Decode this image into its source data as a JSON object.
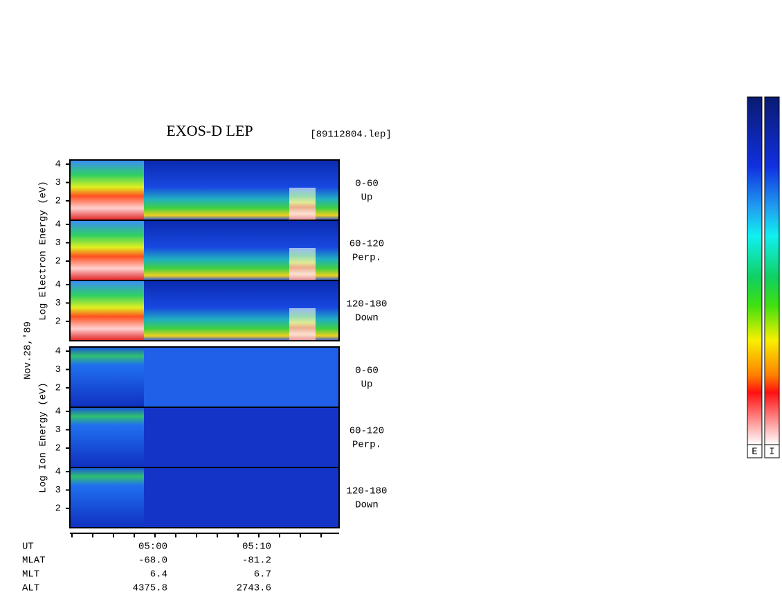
{
  "title": "EXOS-D LEP",
  "file": "[89112804.lep]",
  "date": "Nov.28,'89",
  "electron": {
    "ylabel": "Log Electron Energy (eV)",
    "yticks": [
      2,
      3,
      4
    ],
    "panels": [
      {
        "range": "0-60",
        "dir": "Up"
      },
      {
        "range": "60-120",
        "dir": "Perp."
      },
      {
        "range": "120-180",
        "dir": "Down"
      }
    ]
  },
  "ion": {
    "ylabel": "Log Ion Energy (eV)",
    "yticks": [
      2,
      3,
      4
    ],
    "panels": [
      {
        "range": "0-60",
        "dir": "Up"
      },
      {
        "range": "60-120",
        "dir": "Perp."
      },
      {
        "range": "120-180",
        "dir": "Down"
      }
    ]
  },
  "ephemeris": [
    {
      "name": "UT",
      "values": [
        "05:00",
        "05:10"
      ]
    },
    {
      "name": "MLAT",
      "values": [
        "-68.0",
        "-81.2"
      ]
    },
    {
      "name": "MLT",
      "values": [
        "6.4",
        "6.7"
      ]
    },
    {
      "name": "ALT",
      "values": [
        "4375.8",
        "2743.6"
      ]
    }
  ],
  "colorbars": [
    "E",
    "I"
  ]
}
